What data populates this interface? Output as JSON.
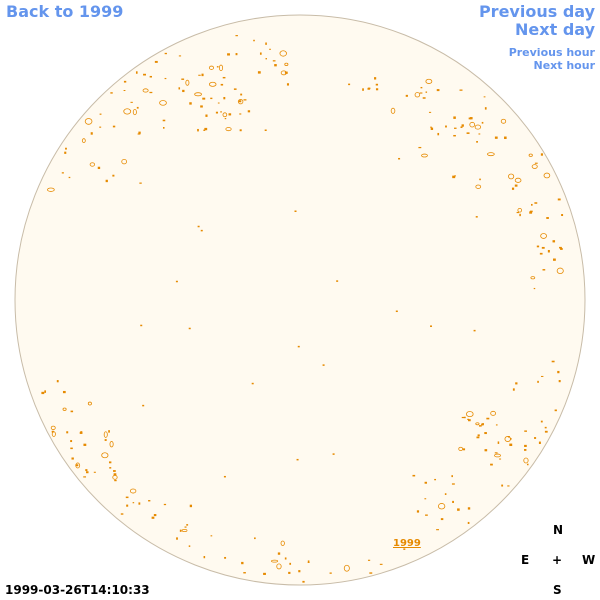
{
  "navigation": {
    "back_label": "Back to 1999",
    "previous_day_label": "Previous day",
    "next_day_label": "Next day",
    "previous_hour_label": "Previous hour",
    "next_hour_label": "Next hour"
  },
  "compass": {
    "north": "N",
    "east": "E",
    "center": "+",
    "west": "W",
    "south": "S"
  },
  "timestamp": "1999-03-26T14:10:33",
  "region_label": "1999",
  "colors": {
    "link": "#6495ed",
    "disk_fill": "#fffaf0",
    "disk_border": "#c8bca8",
    "feature": "#e68a00"
  }
}
